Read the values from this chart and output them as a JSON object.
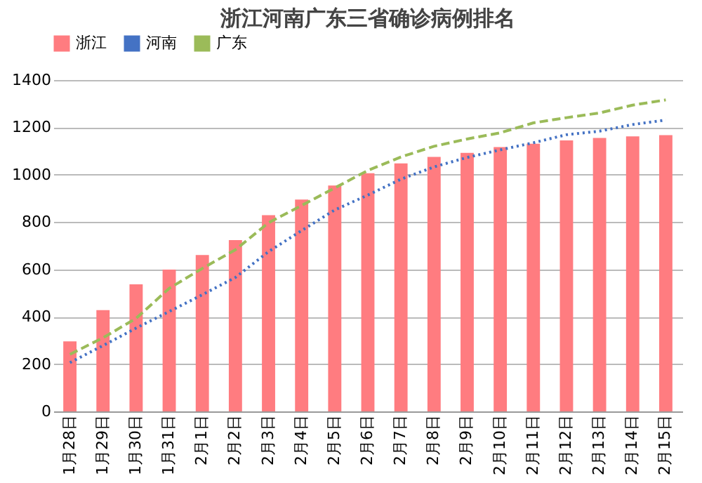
{
  "chart_data": {
    "type": "bar",
    "title": "浙江河南广东三省确诊病例排名",
    "categories": [
      "1月28日",
      "1月29日",
      "1月30日",
      "1月31日",
      "2月1日",
      "2月2日",
      "2月3日",
      "2月4日",
      "2月5日",
      "2月6日",
      "2月7日",
      "2月8日",
      "2月9日",
      "2月10日",
      "2月11日",
      "2月12日",
      "2月13日",
      "2月14日",
      "2月15日"
    ],
    "series": [
      {
        "name": "浙江",
        "color": "#ff7c80",
        "values": [
          296,
          428,
          537,
          599,
          661,
          724,
          829,
          895,
          954,
          1006,
          1048,
          1075,
          1092,
          1117,
          1131,
          1145,
          1155,
          1162,
          1167
        ]
      },
      {
        "name": "河南",
        "type": "line",
        "color": "#4472c4",
        "line_style": "dotted",
        "values": [
          206,
          278,
          352,
          422,
          493,
          566,
          675,
          764,
          851,
          914,
          981,
          1033,
          1073,
          1105,
          1135,
          1169,
          1184,
          1212,
          1231
        ]
      },
      {
        "name": "广东",
        "type": "line",
        "color": "#9bbb59",
        "line_style": "dashed",
        "values": [
          241,
          311,
          393,
          520,
          604,
          683,
          797,
          870,
          944,
          1018,
          1075,
          1120,
          1151,
          1177,
          1219,
          1241,
          1261,
          1294,
          1316
        ]
      }
    ],
    "ylim": [
      0,
      1400
    ],
    "yticks": [
      0,
      200,
      400,
      600,
      800,
      1000,
      1200,
      1400
    ],
    "grid": "y",
    "legend": "top",
    "marker": "none"
  }
}
